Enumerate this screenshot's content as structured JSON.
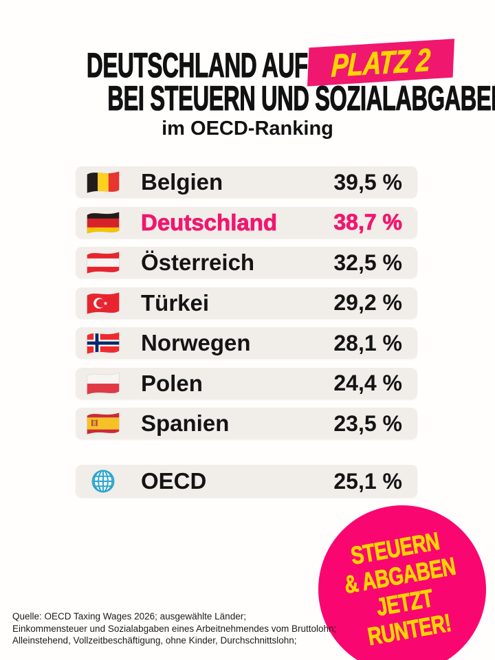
{
  "title": {
    "line1": "DEUTSCHLAND AUF",
    "badge": "PLATZ 2",
    "line2": "BEI STEUERN UND SOZIALABGABEN",
    "subtitle": "im OECD-Ranking"
  },
  "colors": {
    "brand_pink": "#F0176E",
    "sticker_pink": "#FA0670",
    "accent_yellow": "#FFD403",
    "row_background": "#F1EDE9",
    "text_black": "#141414"
  },
  "ranking": {
    "rows": [
      {
        "country": "Belgien",
        "flag": "belgium-flag",
        "value": "39,5 %",
        "highlight": false
      },
      {
        "country": "Deutschland",
        "flag": "germany-flag",
        "value": "38,7 %",
        "highlight": true
      },
      {
        "country": "Österreich",
        "flag": "austria-flag",
        "value": "32,5 %",
        "highlight": false
      },
      {
        "country": "Türkei",
        "flag": "turkey-flag",
        "value": "29,2 %",
        "highlight": false
      },
      {
        "country": "Norwegen",
        "flag": "norway-flag",
        "value": "28,1 %",
        "highlight": false
      },
      {
        "country": "Polen",
        "flag": "poland-flag",
        "value": "24,4 %",
        "highlight": false
      },
      {
        "country": "Spanien",
        "flag": "spain-flag",
        "value": "23,5 %",
        "highlight": false
      }
    ],
    "summary_row": {
      "label": "OECD",
      "icon": "globe-icon",
      "value": "25,1 %"
    }
  },
  "sticker": {
    "lines": [
      "STEUERN",
      "& ABGABEN",
      "JETZT",
      "RUNTER!"
    ]
  },
  "source": {
    "lines": [
      "Quelle: OECD Taxing Wages 2026; ausgewählte Länder;",
      "Einkommensteuer und Sozialabgaben eines Arbeitnehmendes vom Bruttolohn;",
      "Alleinstehend, Vollzeitbeschäftigung, ohne Kinder, Durchschnittslohn;"
    ]
  },
  "chart_data": {
    "type": "table",
    "title": "Deutschland auf Platz 2 bei Steuern und Sozialabgaben im OECD-Ranking",
    "categories": [
      "Belgien",
      "Deutschland",
      "Österreich",
      "Türkei",
      "Norwegen",
      "Polen",
      "Spanien",
      "OECD"
    ],
    "values": [
      39.5,
      38.7,
      32.5,
      29.2,
      28.1,
      24.4,
      23.5,
      25.1
    ],
    "unit": "%",
    "highlighted_category": "Deutschland",
    "note": "OECD-Durchschnitt als separate Zeile unter den Ländern"
  }
}
